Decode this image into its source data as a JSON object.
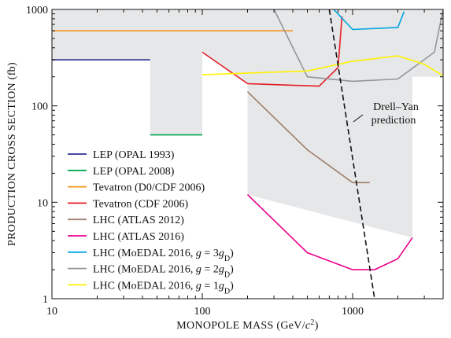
{
  "chart_data": {
    "type": "line",
    "xscale": "log",
    "yscale": "log",
    "xlim": [
      10,
      4000
    ],
    "ylim": [
      1,
      1000
    ],
    "xlabel_main": "MONOPOLE MASS (GeV/",
    "xlabel_c": "c",
    "xlabel_exp": "2",
    "xlabel_close": ")",
    "ylabel": "PRODUCTION CROSS SECTION (fb)",
    "x_ticks": [
      {
        "value": 10,
        "label": "10"
      },
      {
        "value": 100,
        "label": "100"
      },
      {
        "value": 1000,
        "label": "1000"
      }
    ],
    "y_ticks": [
      {
        "value": 1,
        "label": "1"
      },
      {
        "value": 10,
        "label": "10"
      },
      {
        "value": 100,
        "label": "100"
      },
      {
        "value": 1000,
        "label": "1000"
      }
    ],
    "excluded_region": {
      "color": "#e6e7e8",
      "x": [
        10,
        10,
        45,
        45,
        100,
        100,
        200,
        200,
        2500,
        2500,
        4000,
        4000
      ],
      "y": [
        1000,
        300,
        300,
        50,
        50,
        360,
        170,
        12,
        4.3,
        200,
        200,
        1000
      ]
    },
    "series": [
      {
        "name": "LEP (OPAL 1993)",
        "color": "#2e3192",
        "x": [
          10,
          45
        ],
        "y": [
          300,
          300
        ]
      },
      {
        "name": "LEP (OPAL 2008)",
        "color": "#00a651",
        "x": [
          45,
          100
        ],
        "y": [
          50,
          50
        ]
      },
      {
        "name": "Tevatron (D0/CDF 2006)",
        "color": "#f7941d",
        "x": [
          10,
          400
        ],
        "y": [
          600,
          600
        ]
      },
      {
        "name": "Tevatron (CDF 2006)",
        "color": "#e31e25",
        "x": [
          100,
          200,
          600,
          800,
          850
        ],
        "y": [
          360,
          170,
          160,
          250,
          850
        ]
      },
      {
        "name": "LHC (ATLAS 2012)",
        "color": "#9e7f6b",
        "x": [
          200,
          500,
          1000,
          1300
        ],
        "y": [
          140,
          35,
          16,
          16
        ]
      },
      {
        "name": "LHC (ATLAS 2016)",
        "color": "#ec008c",
        "x": [
          200,
          500,
          1000,
          1400,
          2000,
          2500
        ],
        "y": [
          12,
          3,
          2,
          2,
          2.6,
          4.3
        ]
      },
      {
        "name_prefix": "LHC (MoEDAL 2016, ",
        "name_g": "g",
        "name_mid": " = 3",
        "name_gsym": "g",
        "name_sub": "D",
        "name_suffix": ")",
        "color": "#00a4e4",
        "x": [
          750,
          1000,
          2000,
          2200
        ],
        "y": [
          1000,
          620,
          650,
          950
        ]
      },
      {
        "name_prefix": "LHC (MoEDAL 2016, ",
        "name_g": "g",
        "name_mid": " = 2",
        "name_gsym": "g",
        "name_sub": "D",
        "name_suffix": ")",
        "color": "#939598",
        "x": [
          300,
          500,
          1000,
          2000,
          3500,
          4000
        ],
        "y": [
          1000,
          200,
          180,
          190,
          360,
          1000
        ]
      },
      {
        "name_prefix": "LHC (MoEDAL 2016, ",
        "name_g": "g",
        "name_mid": " = 1",
        "name_gsym": "g",
        "name_sub": "D",
        "name_suffix": ")",
        "color": "#fff200",
        "x": [
          100,
          500,
          1000,
          2000,
          3000,
          4000
        ],
        "y": [
          210,
          230,
          290,
          330,
          270,
          205
        ]
      }
    ],
    "drell_yan": {
      "label_line1": "Drell–Yan",
      "label_line2": "prediction",
      "color": "#111111",
      "x": [
        700,
        1400
      ],
      "y": [
        1000,
        1
      ]
    }
  }
}
